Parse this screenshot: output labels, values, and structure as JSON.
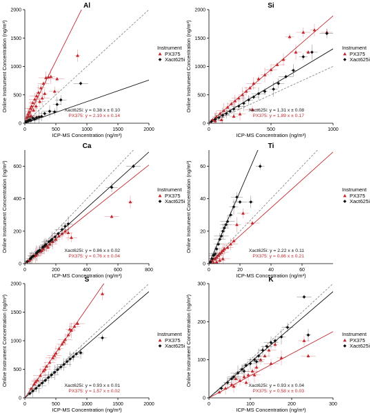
{
  "figure": {
    "colors": {
      "px375": "#c0282e",
      "xact": "#111111",
      "axis": "#000000",
      "oneToOne": "#8a8a8a"
    }
  },
  "chart_data": [
    {
      "type": "scatter",
      "title": "Al",
      "xlabel": "ICP-MS Concentration (ng/m³)",
      "ylabel": "Online Instrument Concentration (ng/m³)",
      "xlim": [
        0,
        2000
      ],
      "ylim": [
        0,
        2000
      ],
      "xticks": [
        0,
        500,
        1000,
        1500,
        2000
      ],
      "yticks": [
        0,
        500,
        1000,
        1500,
        2000
      ],
      "legend": {
        "title": "Instrument",
        "entries": [
          "PX375",
          "Xact625i"
        ]
      },
      "fits": [
        {
          "name": "Xact625i",
          "slope": 0.38,
          "label": "Xact625i: y = 0.38 x ± 0.10"
        },
        {
          "name": "PX375",
          "slope": 2.19,
          "label": "PX375: y = 2.19 x ± 0.14"
        }
      ],
      "series": [
        {
          "name": "PX375",
          "marker": "triangle",
          "x": [
            30,
            50,
            70,
            90,
            110,
            130,
            160,
            190,
            220,
            260,
            300,
            340,
            380,
            420,
            480,
            520,
            850,
            20,
            60,
            100,
            140,
            180,
            240,
            280,
            320
          ],
          "y": [
            100,
            160,
            200,
            260,
            300,
            360,
            420,
            480,
            540,
            620,
            700,
            800,
            810,
            820,
            560,
            780,
            1190,
            40,
            120,
            130,
            230,
            300,
            380,
            440,
            520
          ]
        },
        {
          "name": "Xact625i",
          "marker": "diamond",
          "x": [
            20,
            40,
            60,
            80,
            100,
            130,
            160,
            190,
            230,
            270,
            320,
            400,
            480,
            520,
            580,
            900
          ],
          "y": [
            20,
            30,
            50,
            60,
            50,
            90,
            70,
            100,
            110,
            120,
            170,
            210,
            200,
            330,
            410,
            700
          ]
        }
      ]
    },
    {
      "type": "scatter",
      "title": "Si",
      "xlabel": "ICP-MS Concentration (ng/m³)",
      "ylabel": "Online Instrument Concentration (ng/m³)",
      "xlim": [
        0,
        1000
      ],
      "ylim": [
        0,
        2000
      ],
      "xticks": [
        0,
        500,
        1000
      ],
      "yticks": [
        0,
        500,
        1000,
        1500,
        2000
      ],
      "legend": {
        "title": "Instrument",
        "entries": [
          "PX375",
          "Xact625i"
        ]
      },
      "fits": [
        {
          "name": "Xact625i",
          "slope": 1.31,
          "label": "Xact625i: y = 1.31 x ± 0.08"
        },
        {
          "name": "PX375",
          "slope": 1.89,
          "label": "PX375: y = 1.89 x ± 0.17"
        }
      ],
      "series": [
        {
          "name": "PX375",
          "marker": "triangle",
          "x": [
            30,
            60,
            90,
            120,
            150,
            180,
            210,
            240,
            270,
            300,
            330,
            360,
            400,
            450,
            500,
            550,
            600,
            650,
            700,
            760,
            800,
            850,
            950,
            50,
            100,
            200,
            250,
            350
          ],
          "y": [
            60,
            110,
            170,
            220,
            280,
            340,
            390,
            440,
            500,
            560,
            620,
            700,
            780,
            850,
            940,
            1030,
            1120,
            1520,
            1250,
            1600,
            1250,
            1640,
            1600,
            40,
            60,
            120,
            160,
            240
          ]
        },
        {
          "name": "Xact625i",
          "marker": "diamond",
          "x": [
            20,
            50,
            80,
            110,
            140,
            170,
            200,
            240,
            280,
            320,
            360,
            400,
            450,
            520,
            560,
            620,
            680,
            760,
            830,
            950
          ],
          "y": [
            30,
            70,
            100,
            140,
            170,
            210,
            250,
            300,
            350,
            410,
            460,
            520,
            560,
            600,
            700,
            820,
            930,
            1170,
            1250,
            1580
          ]
        }
      ]
    },
    {
      "type": "scatter",
      "title": "Ca",
      "xlabel": "ICP-MS Concentration (ng/m³)",
      "ylabel": "Online Instrument Concentration (ng/m³)",
      "xlim": [
        0,
        800
      ],
      "ylim": [
        0,
        700
      ],
      "xticks": [
        0,
        200,
        400,
        600,
        800
      ],
      "yticks": [
        0,
        200,
        400,
        600
      ],
      "legend": {
        "title": "Instrument",
        "entries": [
          "PX375",
          "Xact625i"
        ]
      },
      "fits": [
        {
          "name": "Xact625i",
          "slope": 0.86,
          "label": "Xact625i: y = 0.86 x ± 0.02"
        },
        {
          "name": "PX375",
          "slope": 0.76,
          "label": "PX375: y = 0.76 x ± 0.04"
        }
      ],
      "series": [
        {
          "name": "PX375",
          "marker": "triangle",
          "x": [
            20,
            40,
            60,
            80,
            100,
            120,
            140,
            160,
            180,
            200,
            220,
            240,
            260,
            280,
            300,
            560,
            680,
            30,
            70,
            110,
            150
          ],
          "y": [
            15,
            30,
            45,
            60,
            75,
            90,
            110,
            120,
            135,
            150,
            170,
            185,
            200,
            190,
            160,
            290,
            380,
            20,
            50,
            80,
            100
          ]
        },
        {
          "name": "Xact625i",
          "marker": "diamond",
          "x": [
            15,
            35,
            55,
            75,
            95,
            115,
            135,
            155,
            175,
            195,
            215,
            240,
            260,
            280,
            560,
            700,
            45,
            85,
            125,
            165
          ],
          "y": [
            12,
            30,
            48,
            65,
            82,
            100,
            118,
            135,
            150,
            165,
            185,
            210,
            230,
            245,
            470,
            600,
            40,
            75,
            108,
            140
          ]
        }
      ]
    },
    {
      "type": "scatter",
      "title": "Ti",
      "xlabel": "ICP-MS Concentration (ng/m³)",
      "ylabel": "Online Instrument Concentration (ng/m³)",
      "xlim": [
        0,
        80
      ],
      "ylim": [
        0,
        70
      ],
      "xticks": [
        0,
        20,
        40,
        60
      ],
      "yticks": [
        0,
        20,
        40,
        60
      ],
      "legend": {
        "title": "Instrument",
        "entries": [
          "PX375",
          "Xact625i"
        ]
      },
      "fits": [
        {
          "name": "Xact625i",
          "slope": 2.22,
          "label": "Xact625i: y = 2.22 x ± 0.11"
        },
        {
          "name": "PX375",
          "slope": 0.86,
          "label": "PX375: y = 0.86 x ± 0.21"
        }
      ],
      "series": [
        {
          "name": "PX375",
          "marker": "triangle",
          "x": [
            1,
            2,
            3,
            4,
            5,
            6,
            7,
            8,
            9,
            10,
            12,
            14,
            16,
            18,
            22,
            28,
            3,
            5,
            7,
            9
          ],
          "y": [
            1,
            2,
            3,
            3,
            4,
            5,
            6,
            7,
            8,
            9,
            10,
            12,
            14,
            24,
            31,
            25,
            0.5,
            1,
            2,
            3
          ]
        },
        {
          "name": "Xact625i",
          "marker": "diamond",
          "x": [
            1,
            2,
            3,
            4,
            5,
            6,
            7,
            8,
            9,
            10,
            11,
            12,
            14,
            16,
            18,
            20,
            27,
            33
          ],
          "y": [
            1,
            3,
            5,
            6,
            9,
            12,
            15,
            17,
            20,
            22,
            24,
            26,
            30,
            35,
            41,
            38,
            38,
            60
          ]
        }
      ]
    },
    {
      "type": "scatter",
      "title": "S",
      "xlabel": "ICP-MS Concentration (ng/m³)",
      "ylabel": "Online Instrument Concentration (ng/m³)",
      "xlim": [
        0,
        2000
      ],
      "ylim": [
        0,
        2000
      ],
      "xticks": [
        0,
        500,
        1000,
        1500,
        2000
      ],
      "yticks": [
        0,
        500,
        1000,
        1500,
        2000
      ],
      "legend": {
        "title": "Instrument",
        "entries": [
          "PX375",
          "Xact625i"
        ]
      },
      "fits": [
        {
          "name": "Xact625i",
          "slope": 0.93,
          "label": "Xact625i: y = 0.93 x ± 0.01"
        },
        {
          "name": "PX375",
          "slope": 1.57,
          "label": "PX375: y = 1.57 x ± 0.02"
        }
      ],
      "series": [
        {
          "name": "PX375",
          "marker": "triangle",
          "x": [
            100,
            150,
            200,
            250,
            300,
            350,
            400,
            450,
            500,
            550,
            600,
            650,
            700,
            750,
            800,
            850,
            1250,
            175,
            325,
            475,
            625,
            725
          ],
          "y": [
            160,
            240,
            310,
            390,
            470,
            550,
            620,
            700,
            780,
            860,
            940,
            1020,
            1100,
            1180,
            1250,
            1300,
            1820,
            280,
            500,
            740,
            980,
            1200
          ]
        },
        {
          "name": "Xact625i",
          "marker": "diamond",
          "x": [
            80,
            130,
            180,
            230,
            280,
            330,
            380,
            430,
            480,
            530,
            580,
            630,
            680,
            730,
            780,
            830,
            900,
            1250
          ],
          "y": [
            75,
            120,
            165,
            215,
            260,
            305,
            355,
            400,
            445,
            495,
            540,
            585,
            635,
            680,
            720,
            770,
            790,
            1050
          ]
        }
      ]
    },
    {
      "type": "scatter",
      "title": "K",
      "xlabel": "ICP-MS Concentration (ng/m³)",
      "ylabel": "Online Instrument Concentration (ng/m³)",
      "xlim": [
        0,
        300
      ],
      "ylim": [
        0,
        300
      ],
      "xticks": [
        0,
        100,
        200,
        300
      ],
      "yticks": [
        0,
        100,
        200,
        300
      ],
      "legend": {
        "title": "Instrument",
        "entries": [
          "PX375",
          "Xact625i"
        ]
      },
      "fits": [
        {
          "name": "Xact625i",
          "slope": 0.93,
          "label": "Xact625i: y = 0.93 x ± 0.04"
        },
        {
          "name": "PX375",
          "slope": 0.58,
          "label": "PX375: y = 0.58 x ± 0.03"
        }
      ],
      "series": [
        {
          "name": "PX375",
          "marker": "triangle",
          "x": [
            25,
            40,
            55,
            65,
            75,
            85,
            95,
            105,
            115,
            125,
            135,
            145,
            160,
            175,
            230,
            240,
            60,
            90,
            110,
            150
          ],
          "y": [
            15,
            25,
            35,
            50,
            45,
            55,
            60,
            70,
            80,
            100,
            110,
            125,
            140,
            105,
            150,
            110,
            30,
            40,
            60,
            90
          ]
        },
        {
          "name": "Xact625i",
          "marker": "diamond",
          "x": [
            30,
            45,
            60,
            70,
            80,
            90,
            100,
            110,
            120,
            130,
            140,
            150,
            160,
            175,
            190,
            230,
            240,
            55,
            85,
            115
          ],
          "y": [
            25,
            40,
            55,
            65,
            75,
            85,
            90,
            100,
            110,
            125,
            135,
            145,
            150,
            160,
            185,
            265,
            165,
            50,
            70,
            95
          ]
        }
      ]
    }
  ]
}
